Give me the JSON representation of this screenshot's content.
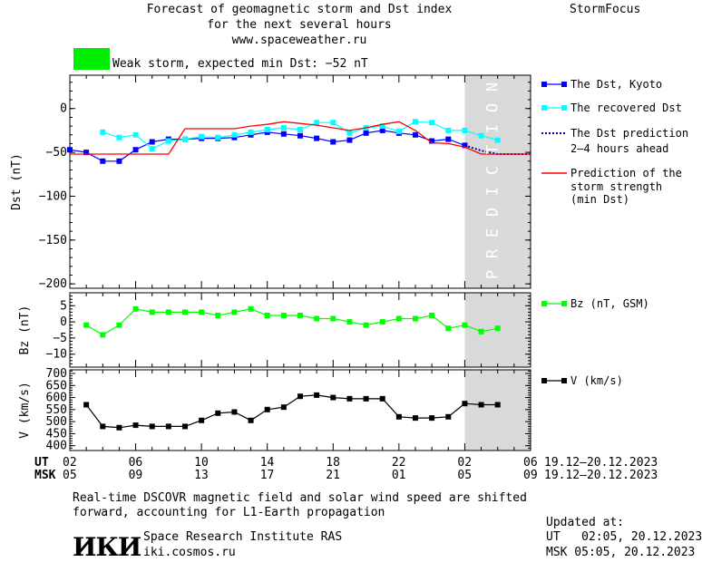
{
  "header": {
    "title_line1": "Forecast of geomagnetic storm and Dst index",
    "title_line2": "for the next several hours",
    "title_line3": "www.spaceweather.ru",
    "brand": "StormFocus",
    "storm_status": "Weak storm, expected min Dst: −52 nT",
    "status_color": "#00ee00"
  },
  "prediction_label": "PREDICTION",
  "legend": {
    "dst_kyoto": "The Dst, Kyoto",
    "dst_recovered": "The recovered Dst",
    "dst_prediction_1": "The Dst prediction",
    "dst_prediction_2": "2–4 hours ahead",
    "storm_1": "Prediction of the",
    "storm_2": "storm strength",
    "storm_3": "(min Dst)",
    "bz": "Bz (nT, GSM)",
    "v": "V (km/s)"
  },
  "time_axis": {
    "ut_label": "UT",
    "msk_label": "MSK",
    "ut_ticks": [
      "02",
      "06",
      "10",
      "14",
      "18",
      "22",
      "02",
      "06"
    ],
    "msk_ticks": [
      "05",
      "09",
      "13",
      "17",
      "21",
      "01",
      "05",
      "09"
    ],
    "ut_range": "19.12–20.12.2023",
    "msk_range": "19.12–20.12.2023"
  },
  "footer": {
    "note_line1": "Real-time DSCOVR magnetic field and solar wind speed are shifted",
    "note_line2": "forward, accounting for L1-Earth propagation",
    "logo": "ИКИ",
    "institute": "Space Research Institute RAS",
    "site": "iki.cosmos.ru",
    "updated_label": "Updated at:",
    "updated_ut": "UT   02:05, 20.12.2023",
    "updated_msk": "MSK 05:05, 20.12.2023"
  },
  "chart_data": [
    {
      "type": "line",
      "ylabel": "Dst (nT)",
      "xlim": [
        0,
        28
      ],
      "ylim": [
        -205,
        38
      ],
      "yticks": [
        0,
        -50,
        -100,
        -150,
        -200
      ],
      "x_tick_positions_hours": [
        0,
        4,
        8,
        12,
        16,
        20,
        24,
        28
      ],
      "prediction_region": [
        24,
        28
      ],
      "series": [
        {
          "name": "The Dst, Kyoto",
          "color": "#0000ff",
          "x": [
            0,
            1,
            2,
            3,
            4,
            5,
            6,
            7,
            8,
            9,
            10,
            11,
            12,
            13,
            14,
            15,
            16,
            17,
            18,
            19,
            20,
            21,
            22,
            23,
            24
          ],
          "y": [
            -47,
            -50,
            -60,
            -60,
            -47,
            -38,
            -35,
            -35,
            -34,
            -34,
            -33,
            -30,
            -27,
            -29,
            -31,
            -34,
            -38,
            -36,
            -28,
            -25,
            -28,
            -30,
            -37,
            -35,
            -42
          ]
        },
        {
          "name": "The recovered Dst",
          "color": "#00ffff",
          "x": [
            2,
            3,
            4,
            5,
            6,
            7,
            8,
            9,
            10,
            11,
            12,
            13,
            14,
            15,
            16,
            17,
            18,
            19,
            20,
            21,
            22,
            23,
            24,
            25,
            26
          ],
          "y": [
            -27,
            -33,
            -30,
            -46,
            -37,
            -35,
            -32,
            -33,
            -30,
            -27,
            -24,
            -22,
            -24,
            -16,
            -16,
            -28,
            -22,
            -20,
            -26,
            -15,
            -16,
            -25,
            -25,
            -31,
            -36
          ]
        },
        {
          "name": "The Dst prediction 2–4 hours ahead",
          "color": "#0000aa",
          "x": [
            24,
            25,
            26,
            28
          ],
          "y": [
            -42,
            -48,
            -52,
            -52
          ]
        },
        {
          "name": "Prediction of the storm strength (min Dst)",
          "color": "#ff0000",
          "x": [
            0,
            6,
            7,
            10,
            11,
            12,
            13,
            14,
            15,
            16,
            17,
            18,
            19,
            20,
            21,
            22,
            23,
            24,
            25,
            26,
            27,
            28
          ],
          "y": [
            -52,
            -52,
            -23,
            -23,
            -20,
            -18,
            -15,
            -17,
            -19,
            -22,
            -25,
            -22,
            -18,
            -15,
            -25,
            -39,
            -40,
            -44,
            -52,
            -52,
            -52,
            -52
          ]
        }
      ]
    },
    {
      "type": "line",
      "ylabel": "Bz (nT)",
      "xlim": [
        0,
        28
      ],
      "ylim": [
        -14,
        9
      ],
      "yticks": [
        5,
        0,
        -5,
        -10
      ],
      "prediction_region": [
        24,
        28
      ],
      "series": [
        {
          "name": "Bz (nT, GSM)",
          "color": "#00ff00",
          "x": [
            1,
            2,
            3,
            4,
            5,
            6,
            7,
            8,
            9,
            10,
            11,
            12,
            13,
            14,
            15,
            16,
            17,
            18,
            19,
            20,
            21,
            22,
            23,
            24,
            25,
            26
          ],
          "y": [
            -1,
            -4,
            -1,
            4,
            3,
            3,
            3,
            3,
            2,
            3,
            4,
            2,
            2,
            2,
            1,
            1,
            0,
            -1,
            0,
            1,
            1,
            2,
            -2,
            -1,
            -3,
            -2
          ]
        }
      ]
    },
    {
      "type": "line",
      "ylabel": "V (km/s)",
      "xlim": [
        0,
        28
      ],
      "ylim": [
        380,
        715
      ],
      "yticks": [
        700,
        650,
        600,
        550,
        500,
        450,
        400
      ],
      "prediction_region": [
        24,
        28
      ],
      "series": [
        {
          "name": "V (km/s)",
          "color": "#000000",
          "x": [
            1,
            2,
            3,
            4,
            5,
            6,
            7,
            8,
            9,
            10,
            11,
            12,
            13,
            14,
            15,
            16,
            17,
            18,
            19,
            20,
            21,
            22,
            23,
            24,
            25,
            26
          ],
          "y": [
            570,
            480,
            475,
            485,
            480,
            480,
            480,
            505,
            535,
            540,
            505,
            550,
            560,
            605,
            610,
            600,
            595,
            595,
            595,
            520,
            515,
            515,
            520,
            575,
            570,
            570
          ]
        }
      ]
    }
  ]
}
